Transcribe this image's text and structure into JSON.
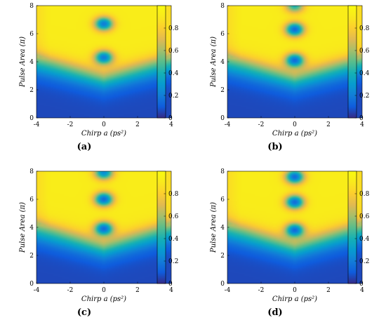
{
  "chart_data": [
    {
      "type": "heatmap",
      "panel_label": "(a)",
      "xlabel": "Chirp a (ps²)",
      "ylabel": "Pulse Area (π)",
      "xlim": [
        -4,
        4
      ],
      "ylim": [
        0,
        8
      ],
      "x_ticks": [
        "-4",
        "-2",
        "0",
        "2",
        "4"
      ],
      "y_ticks": [
        "0",
        "2",
        "4",
        "6",
        "8"
      ],
      "colorbar": {
        "range": [
          0,
          1
        ],
        "ticks": [
          "0",
          "0.2",
          "0.4",
          "0.6",
          "0.8"
        ]
      },
      "colormap": "parula",
      "features": {
        "boundary_base_pulse_area": 2.0,
        "boundary_slope_per_ps2": 0.3,
        "low_value_dips_at_chirp_0": [
          {
            "pulse_area": 4.3,
            "value": 0.2
          },
          {
            "pulse_area": 6.7,
            "value": 0.2
          }
        ]
      }
    },
    {
      "type": "heatmap",
      "panel_label": "(b)",
      "xlabel": "Chirp a (ps²)",
      "ylabel": "Pulse Area (π)",
      "xlim": [
        -4,
        4
      ],
      "ylim": [
        0,
        8
      ],
      "x_ticks": [
        "-4",
        "-2",
        "0",
        "2",
        "4"
      ],
      "y_ticks": [
        "0",
        "2",
        "4",
        "6",
        "8"
      ],
      "colorbar": {
        "range": [
          0,
          1
        ],
        "ticks": [
          "0",
          "0.2",
          "0.4",
          "0.6",
          "0.8"
        ]
      },
      "colormap": "parula",
      "features": {
        "boundary_base_pulse_area": 2.0,
        "boundary_slope_per_ps2": 0.3,
        "low_value_dips_at_chirp_0": [
          {
            "pulse_area": 4.1,
            "value": 0.15
          },
          {
            "pulse_area": 6.3,
            "value": 0.15
          },
          {
            "pulse_area": 8.0,
            "value": 0.4
          }
        ]
      }
    },
    {
      "type": "heatmap",
      "panel_label": "(c)",
      "xlabel": "Chirp a (ps²)",
      "ylabel": "Pulse Area (π)",
      "xlim": [
        -4,
        4
      ],
      "ylim": [
        0,
        8
      ],
      "x_ticks": [
        "-4",
        "-2",
        "0",
        "2",
        "4"
      ],
      "y_ticks": [
        "0",
        "2",
        "4",
        "6",
        "8"
      ],
      "colorbar": {
        "range": [
          0,
          1
        ],
        "ticks": [
          "0",
          "0.2",
          "0.4",
          "0.6",
          "0.8"
        ]
      },
      "colormap": "parula",
      "features": {
        "boundary_base_pulse_area": 1.8,
        "boundary_slope_per_ps2": 0.32,
        "low_value_dips_at_chirp_0": [
          {
            "pulse_area": 3.9,
            "value": 0.15
          },
          {
            "pulse_area": 6.0,
            "value": 0.15
          },
          {
            "pulse_area": 7.9,
            "value": 0.25
          }
        ]
      }
    },
    {
      "type": "heatmap",
      "panel_label": "(d)",
      "xlabel": "Chirp a (ps²)",
      "ylabel": "Pulse Area (π)",
      "xlim": [
        -4,
        4
      ],
      "ylim": [
        0,
        8
      ],
      "x_ticks": [
        "-4",
        "-2",
        "0",
        "2",
        "4"
      ],
      "y_ticks": [
        "0",
        "2",
        "4",
        "6",
        "8"
      ],
      "colorbar": {
        "range": [
          0,
          1
        ],
        "ticks": [
          "0",
          "0.2",
          "0.4",
          "0.6",
          "0.8"
        ]
      },
      "colormap": "parula",
      "features": {
        "boundary_base_pulse_area": 1.8,
        "boundary_slope_per_ps2": 0.32,
        "low_value_dips_at_chirp_0": [
          {
            "pulse_area": 3.8,
            "value": 0.15
          },
          {
            "pulse_area": 5.8,
            "value": 0.15
          },
          {
            "pulse_area": 7.6,
            "value": 0.15
          }
        ]
      }
    }
  ]
}
